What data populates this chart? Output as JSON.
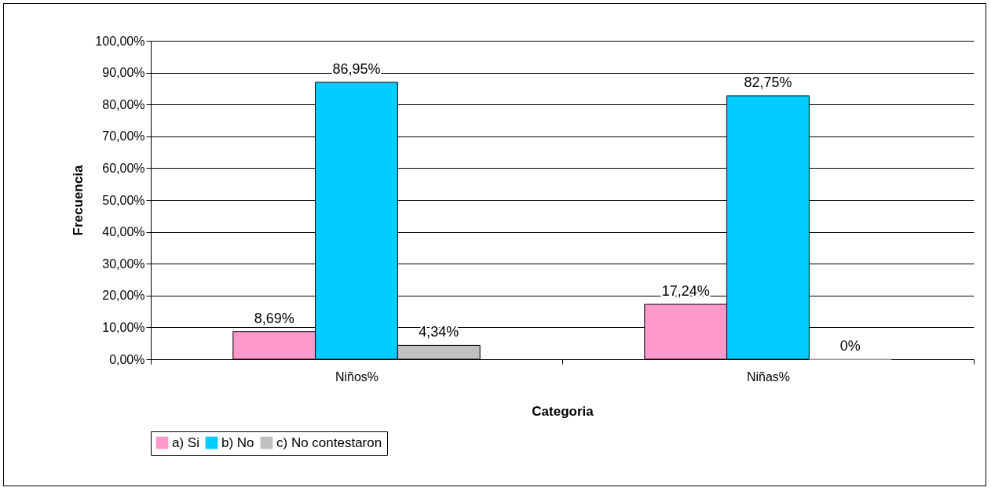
{
  "chart_data": {
    "type": "bar",
    "xlabel": "Categoria",
    "ylabel": "Frecuencia",
    "categories": [
      "Niños%",
      "Niñas%"
    ],
    "series": [
      {
        "name": "a) Si",
        "color": "#ff99cc",
        "values": [
          8.69,
          17.24
        ],
        "value_labels": [
          "8,69%",
          "17,24%"
        ]
      },
      {
        "name": "b) No",
        "color": "#00ccff",
        "values": [
          86.95,
          82.75
        ],
        "value_labels": [
          "86,95%",
          "82,75%"
        ]
      },
      {
        "name": "c) No contestaron",
        "color": "#c0c0c0",
        "values": [
          4.34,
          0
        ],
        "value_labels": [
          "4,34%",
          "0%"
        ]
      }
    ],
    "ylim": [
      0,
      100
    ],
    "yticks": [
      {
        "value": 0,
        "label": "0,00%"
      },
      {
        "value": 10,
        "label": "10,00%"
      },
      {
        "value": 20,
        "label": "20,00%"
      },
      {
        "value": 30,
        "label": "30,00%"
      },
      {
        "value": 40,
        "label": "40,00%"
      },
      {
        "value": 50,
        "label": "50,00%"
      },
      {
        "value": 60,
        "label": "60,00%"
      },
      {
        "value": 70,
        "label": "70,00%"
      },
      {
        "value": 80,
        "label": "80,00%"
      },
      {
        "value": 90,
        "label": "90,00%"
      },
      {
        "value": 100,
        "label": "100,00%"
      }
    ],
    "grid": "y",
    "legend": "bottom"
  }
}
